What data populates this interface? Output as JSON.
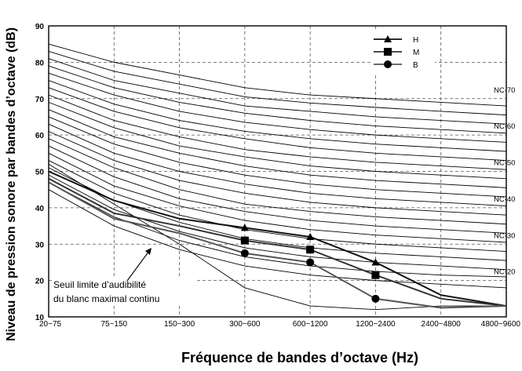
{
  "chart_data": {
    "type": "line",
    "title": "",
    "xlabel": "Fréquence de bandes d’octave (Hz)",
    "ylabel": "Niveau de pression sonore par bandes d’octave (dB)",
    "categories": [
      "20~75",
      "75~150",
      "150~300",
      "300~600",
      "600~1200",
      "1200~2400",
      "2400~4800",
      "4800~9600"
    ],
    "ylim": [
      10,
      90
    ],
    "yticks": [
      10,
      20,
      30,
      40,
      50,
      60,
      70,
      80,
      90
    ],
    "grid": true,
    "legend_position": "top-right",
    "series": [
      {
        "name": "H",
        "marker": "triangle",
        "color": "#111111",
        "values": [
          50,
          42,
          37,
          34.5,
          32,
          25,
          16,
          13
        ]
      },
      {
        "name": "M",
        "marker": "square",
        "color": "#333333",
        "values": [
          48,
          38.5,
          35,
          31,
          28.5,
          21.5,
          15,
          13
        ]
      },
      {
        "name": "B",
        "marker": "circle",
        "color": "#555555",
        "values": [
          47,
          37,
          33,
          27.5,
          25,
          15,
          12.5,
          13
        ]
      }
    ],
    "nc_curves": {
      "labels": [
        {
          "text": "NC-70",
          "y": 70
        },
        {
          "text": "NC-60",
          "y": 60
        },
        {
          "text": "NC-50",
          "y": 50
        },
        {
          "text": "NC-40",
          "y": 40
        },
        {
          "text": "NC-30",
          "y": 30
        },
        {
          "text": "NC-20",
          "y": 20
        }
      ],
      "curves": [
        [
          85,
          80,
          76.5,
          73,
          71,
          70,
          69,
          68
        ],
        [
          83,
          77.5,
          74,
          70.5,
          68.8,
          67.6,
          66.5,
          65.5
        ],
        [
          81,
          75,
          71.5,
          68,
          66.5,
          65,
          64,
          63
        ],
        [
          79,
          73,
          69,
          66,
          64,
          62.5,
          61.5,
          60.5
        ],
        [
          77,
          71,
          66.5,
          63.5,
          61.5,
          60,
          59,
          58
        ],
        [
          75,
          68.5,
          64,
          61,
          59,
          57.5,
          56.5,
          55.5
        ],
        [
          73,
          66.5,
          62,
          59,
          56.5,
          55,
          54,
          53
        ],
        [
          71,
          64,
          59.5,
          56,
          54,
          52.5,
          51.5,
          50.5
        ],
        [
          69,
          62,
          57,
          54,
          51.5,
          50,
          49,
          48
        ],
        [
          67,
          59.5,
          55,
          51.5,
          49,
          47.5,
          46.5,
          45.5
        ],
        [
          65,
          57.5,
          52.5,
          49,
          46.5,
          45,
          44,
          43
        ],
        [
          63,
          55,
          50,
          46.5,
          44,
          42.5,
          41.5,
          40.5
        ],
        [
          61,
          53,
          47.5,
          44,
          41.5,
          40,
          39,
          38
        ],
        [
          59,
          51,
          45,
          41,
          39,
          37.5,
          36.5,
          35.5
        ],
        [
          57,
          48.5,
          42.5,
          39,
          36.5,
          35,
          34,
          33
        ],
        [
          55,
          46,
          40.5,
          36.5,
          34,
          32.5,
          31.5,
          30.5
        ],
        [
          53,
          44,
          38,
          34,
          31.5,
          30,
          29,
          28
        ],
        [
          51,
          42,
          36,
          31.5,
          29,
          27.5,
          26.5,
          25.5
        ],
        [
          49,
          39.5,
          33.5,
          29,
          26.5,
          25,
          24,
          23
        ],
        [
          47,
          37.5,
          31,
          26.5,
          24,
          22.5,
          21.5,
          21
        ],
        [
          45,
          35,
          28.5,
          24,
          21.5,
          20,
          19,
          18
        ],
        [
          52,
          41,
          30,
          18,
          13,
          12,
          13,
          13
        ]
      ]
    },
    "annotation": {
      "line1": "Seuil limite d’audibilité",
      "line2": "du blanc maximal continu"
    }
  }
}
